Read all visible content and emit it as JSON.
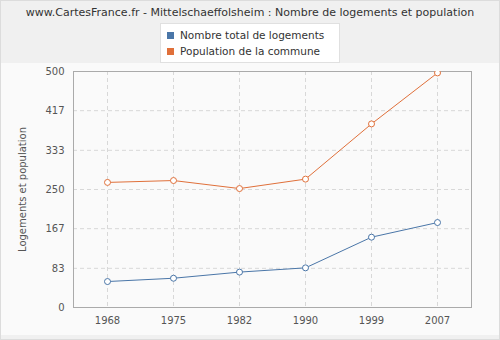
{
  "chart_data": {
    "type": "line",
    "title": "www.CartesFrance.fr - Mittelschaeffolsheim : Nombre de logements et population",
    "categories": [
      "1968",
      "1975",
      "1982",
      "1990",
      "1999",
      "2007"
    ],
    "series": [
      {
        "name": "Nombre total de logements",
        "color": "#4a76a8",
        "values": [
          55,
          62,
          75,
          84,
          149,
          180
        ]
      },
      {
        "name": "Population de la commune",
        "color": "#e0703a",
        "values": [
          265,
          269,
          252,
          272,
          389,
          497
        ]
      }
    ],
    "y_label": "Logements et population",
    "ylim": [
      0,
      500
    ],
    "yticks": [
      0,
      83,
      167,
      250,
      333,
      417,
      500
    ],
    "grid": true,
    "legend": "top",
    "marker": "circle"
  }
}
